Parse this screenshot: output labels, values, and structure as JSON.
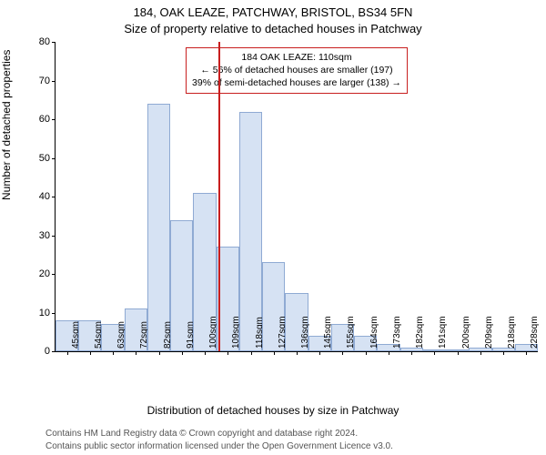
{
  "title_line1": "184, OAK LEAZE, PATCHWAY, BRISTOL, BS34 5FN",
  "title_line2": "Size of property relative to detached houses in Patchway",
  "ylabel": "Number of detached properties",
  "xlabel": "Distribution of detached houses by size in Patchway",
  "footer_line1": "Contains HM Land Registry data © Crown copyright and database right 2024.",
  "footer_line2": "Contains public sector information licensed under the Open Government Licence v3.0.",
  "chart": {
    "type": "histogram",
    "ylim": [
      0,
      80
    ],
    "ytick_step": 10,
    "background_color": "#ffffff",
    "axis_color": "#000000",
    "bar_fill": "#d6e2f3",
    "bar_border": "#8faad3",
    "vline_color": "#c81e1e",
    "annot_border": "#c81e1e",
    "xtick_labels": [
      "45sqm",
      "54sqm",
      "63sqm",
      "72sqm",
      "82sqm",
      "91sqm",
      "100sqm",
      "109sqm",
      "118sqm",
      "127sqm",
      "136sqm",
      "145sqm",
      "155sqm",
      "164sqm",
      "173sqm",
      "182sqm",
      "191sqm",
      "200sqm",
      "209sqm",
      "218sqm",
      "228sqm"
    ],
    "values": [
      8,
      8,
      7,
      11,
      64,
      34,
      41,
      27,
      62,
      23,
      15,
      4,
      7,
      4,
      2,
      1,
      0,
      0,
      1,
      1,
      2
    ],
    "vline_index": 7.1,
    "annot_lines": [
      "184 OAK LEAZE: 110sqm",
      "← 56% of detached houses are smaller (197)",
      "39% of semi-detached houses are larger (138) →"
    ]
  }
}
